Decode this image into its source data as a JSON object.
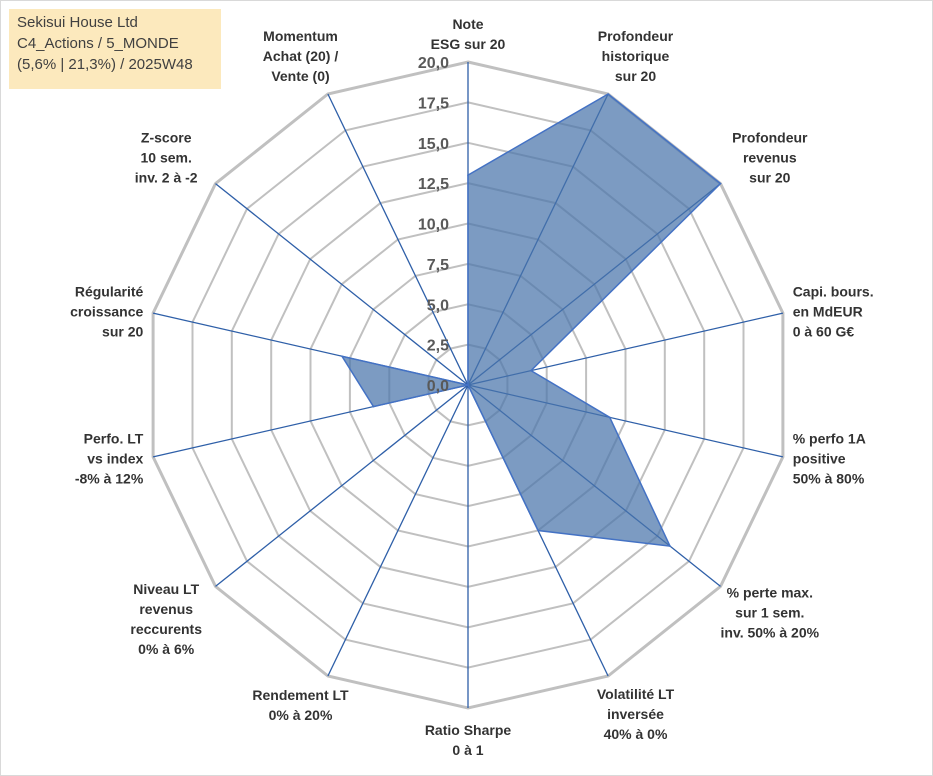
{
  "info_box": {
    "line1": "Sekisui House Ltd",
    "line2": "C4_Actions / 5_MONDE",
    "line3": "(5,6% | 21,3%) / 2025W48"
  },
  "colors": {
    "fill": "#4a74aa",
    "stroke": "#4472c4",
    "grid": "#c0c0c0",
    "spoke": "#2e5fa8"
  },
  "chart_data": {
    "type": "radar",
    "title": "",
    "rmin": 0,
    "rmax": 20,
    "ticks": [
      "0,0",
      "2,5",
      "5,0",
      "7,5",
      "10,0",
      "12,5",
      "15,0",
      "17,5",
      "20,0"
    ],
    "tick_values": [
      0,
      2.5,
      5,
      7.5,
      10,
      12.5,
      15,
      17.5,
      20
    ],
    "axes": [
      {
        "label": [
          "Note",
          "ESG sur 20"
        ],
        "value": 13
      },
      {
        "label": [
          "Profondeur",
          "historique",
          "sur 20"
        ],
        "value": 20
      },
      {
        "label": [
          "Profondeur",
          "revenus",
          "sur 20"
        ],
        "value": 20
      },
      {
        "label": [
          "Capi. bours.",
          "en MdEUR",
          "0 à 60 G€"
        ],
        "value": 4
      },
      {
        "label": [
          "% perfo 1A",
          "positive",
          "50% à 80%"
        ],
        "value": 9
      },
      {
        "label": [
          "% perte max.",
          "sur 1 sem.",
          "inv. 50% à 20%"
        ],
        "value": 16
      },
      {
        "label": [
          "Volatilité LT",
          "inversée",
          "40% à 0%"
        ],
        "value": 10
      },
      {
        "label": [
          "Ratio Sharpe",
          "0 à 1"
        ],
        "value": 0
      },
      {
        "label": [
          "Rendement LT",
          "0% à 20%"
        ],
        "value": 0
      },
      {
        "label": [
          "Niveau LT",
          "revenus",
          "reccurents",
          "0% à 6%"
        ],
        "value": 0
      },
      {
        "label": [
          "Perfo. LT",
          "vs index",
          "-8% à 12%"
        ],
        "value": 6
      },
      {
        "label": [
          "Régularité",
          "croissance",
          "sur 20"
        ],
        "value": 8
      },
      {
        "label": [
          "Z-score",
          "10 sem.",
          "inv. 2 à -2"
        ],
        "value": 0
      },
      {
        "label": [
          "Momentum",
          "Achat (20) /",
          "Vente (0)"
        ],
        "value": 0
      }
    ]
  }
}
